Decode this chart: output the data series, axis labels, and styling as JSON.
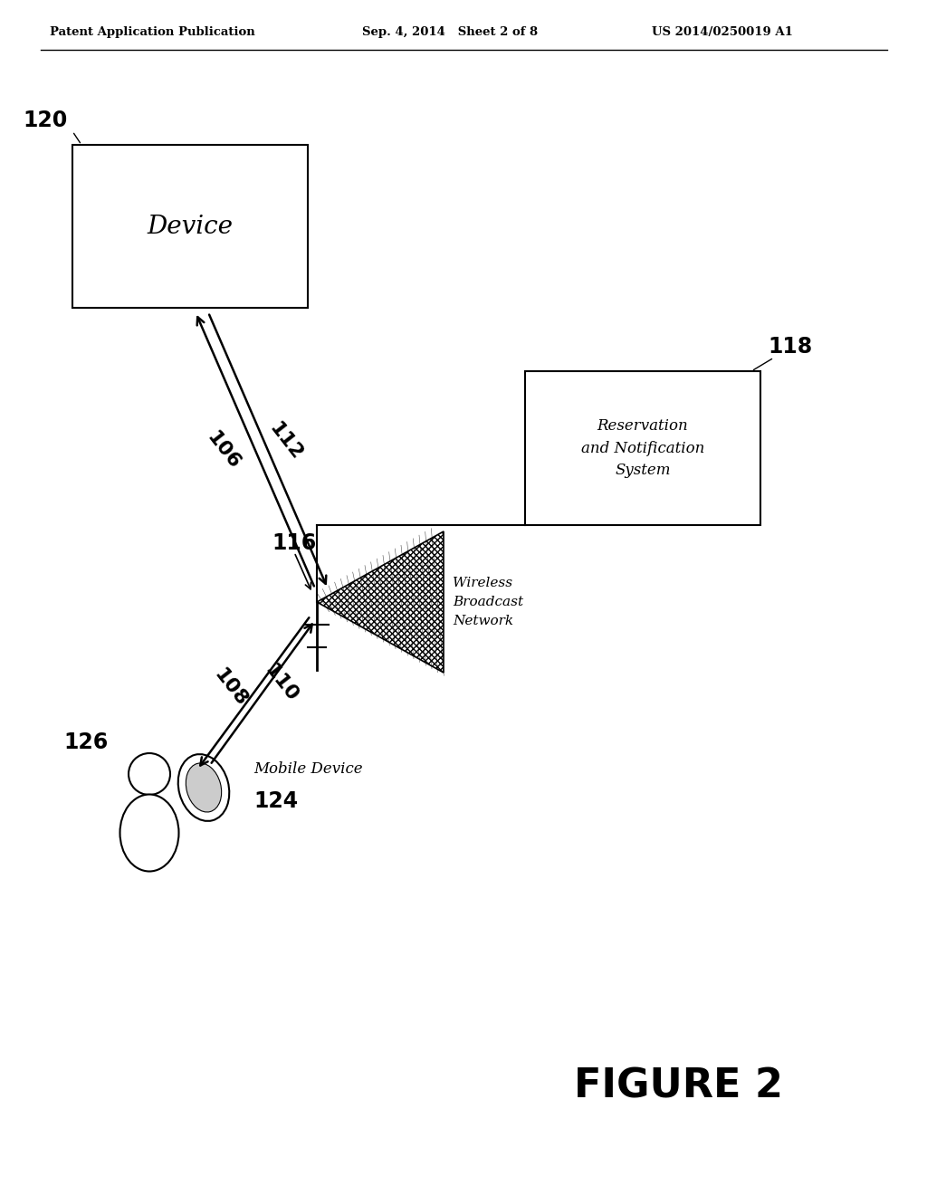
{
  "bg_color": "#ffffff",
  "header_left": "Patent Application Publication",
  "header_mid": "Sep. 4, 2014   Sheet 2 of 8",
  "header_right": "US 2014/0250019 A1",
  "figure_label": "FIGURE 2",
  "device_label": "Device",
  "device_num": "120",
  "res_label": "Reservation\nand Notification\nSystem",
  "res_num": "118",
  "wbn_label": "Wireless\nBroadcast\nNetwork",
  "wbn_num": "116",
  "mobile_device_label": "Mobile Device",
  "mobile_device_num": "124",
  "person_num": "126"
}
